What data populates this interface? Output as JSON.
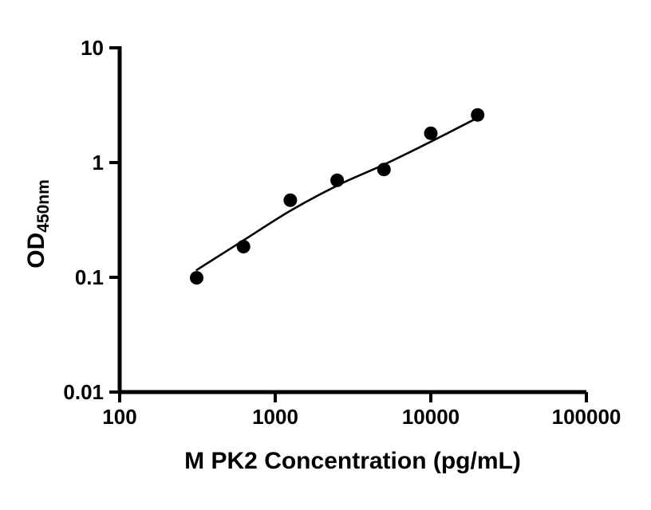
{
  "chart_data": {
    "type": "scatter",
    "title": "",
    "xlabel": "M PK2 Concentration (pg/mL)",
    "ylabel": "OD",
    "ylabel_subscript": "450nm",
    "x_scale": "log",
    "y_scale": "log",
    "xlim": [
      100,
      100000
    ],
    "ylim": [
      0.01,
      10
    ],
    "x_ticks": [
      100,
      1000,
      10000,
      100000
    ],
    "x_tick_labels": [
      "100",
      "1000",
      "10000",
      "100000"
    ],
    "y_ticks": [
      10,
      1,
      0.1,
      0.01
    ],
    "y_tick_labels": [
      "10",
      "1",
      "0.1",
      "0.01"
    ],
    "grid": "off",
    "legend": null,
    "series": [
      {
        "name": "standards",
        "marker": "filled-circle",
        "x": [
          312.5,
          625,
          1250,
          2500,
          5000,
          10000,
          20000
        ],
        "y": [
          0.099,
          0.185,
          0.47,
          0.7,
          0.87,
          1.8,
          2.6
        ]
      }
    ],
    "fit_curve": {
      "name": "fitted-standard-curve",
      "x": [
        310,
        625,
        1250,
        2500,
        5000,
        10000,
        20500
      ],
      "y": [
        0.115,
        0.21,
        0.38,
        0.63,
        0.96,
        1.52,
        2.5
      ]
    },
    "colors": {
      "point": "#000000",
      "line": "#000000",
      "axis": "#000000",
      "background": "#ffffff"
    }
  }
}
